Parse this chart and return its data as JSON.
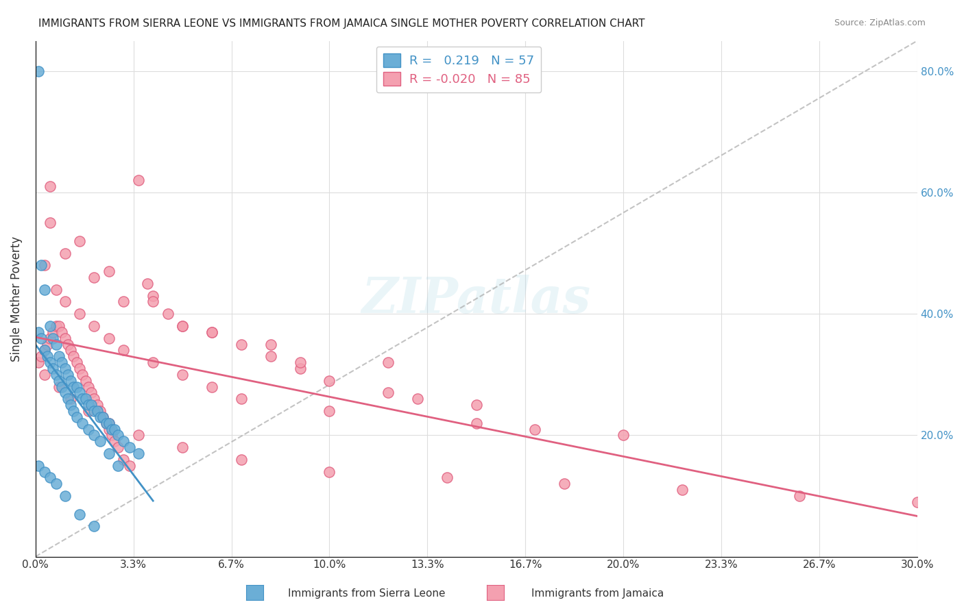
{
  "title": "IMMIGRANTS FROM SIERRA LEONE VS IMMIGRANTS FROM JAMAICA SINGLE MOTHER POVERTY CORRELATION CHART",
  "source": "Source: ZipAtlas.com",
  "xlabel_bottom": "",
  "ylabel": "Single Mother Poverty",
  "x_tick_labels": [
    "0.0%",
    "",
    "",
    "",
    "",
    "",
    "",
    "",
    "",
    "30.0%"
  ],
  "y_tick_labels_right": [
    "80.0%",
    "60.0%",
    "40.0%",
    "20.0%"
  ],
  "legend_r_blue": "R =   0.219   N = 57",
  "legend_r_pink": "R = -0.020   N = 85",
  "legend_label_blue": "Immigrants from Sierra Leone",
  "legend_label_pink": "Immigrants from Jamaica",
  "watermark": "ZIPatlas",
  "blue_color": "#6baed6",
  "pink_color": "#f4a0b0",
  "blue_line_color": "#4292c6",
  "pink_line_color": "#e06080",
  "dashed_line_color": "#aaaaaa",
  "background_color": "#ffffff",
  "grid_color": "#dddddd",
  "sierra_leone_x": [
    0.001,
    0.002,
    0.003,
    0.005,
    0.006,
    0.007,
    0.008,
    0.009,
    0.01,
    0.011,
    0.012,
    0.013,
    0.014,
    0.015,
    0.016,
    0.017,
    0.018,
    0.019,
    0.02,
    0.021,
    0.022,
    0.023,
    0.024,
    0.025,
    0.026,
    0.027,
    0.028,
    0.03,
    0.032,
    0.035,
    0.001,
    0.002,
    0.003,
    0.004,
    0.005,
    0.006,
    0.007,
    0.008,
    0.009,
    0.01,
    0.011,
    0.012,
    0.013,
    0.014,
    0.016,
    0.018,
    0.02,
    0.022,
    0.025,
    0.028,
    0.001,
    0.003,
    0.005,
    0.007,
    0.01,
    0.015,
    0.02
  ],
  "sierra_leone_y": [
    0.8,
    0.48,
    0.44,
    0.38,
    0.36,
    0.35,
    0.33,
    0.32,
    0.31,
    0.3,
    0.29,
    0.28,
    0.28,
    0.27,
    0.26,
    0.26,
    0.25,
    0.25,
    0.24,
    0.24,
    0.23,
    0.23,
    0.22,
    0.22,
    0.21,
    0.21,
    0.2,
    0.19,
    0.18,
    0.17,
    0.37,
    0.36,
    0.34,
    0.33,
    0.32,
    0.31,
    0.3,
    0.29,
    0.28,
    0.27,
    0.26,
    0.25,
    0.24,
    0.23,
    0.22,
    0.21,
    0.2,
    0.19,
    0.17,
    0.15,
    0.15,
    0.14,
    0.13,
    0.12,
    0.1,
    0.07,
    0.05
  ],
  "jamaica_x": [
    0.001,
    0.002,
    0.003,
    0.004,
    0.005,
    0.006,
    0.007,
    0.008,
    0.009,
    0.01,
    0.011,
    0.012,
    0.013,
    0.014,
    0.015,
    0.016,
    0.017,
    0.018,
    0.019,
    0.02,
    0.021,
    0.022,
    0.023,
    0.024,
    0.025,
    0.026,
    0.027,
    0.028,
    0.03,
    0.032,
    0.035,
    0.038,
    0.04,
    0.045,
    0.05,
    0.06,
    0.07,
    0.08,
    0.09,
    0.1,
    0.12,
    0.15,
    0.003,
    0.007,
    0.01,
    0.015,
    0.02,
    0.025,
    0.03,
    0.04,
    0.05,
    0.06,
    0.07,
    0.1,
    0.15,
    0.2,
    0.005,
    0.01,
    0.02,
    0.03,
    0.05,
    0.08,
    0.12,
    0.003,
    0.008,
    0.012,
    0.018,
    0.025,
    0.035,
    0.05,
    0.07,
    0.1,
    0.14,
    0.18,
    0.22,
    0.26,
    0.3,
    0.005,
    0.015,
    0.025,
    0.04,
    0.06,
    0.09,
    0.13,
    0.17
  ],
  "jamaica_y": [
    0.32,
    0.33,
    0.34,
    0.35,
    0.36,
    0.37,
    0.38,
    0.38,
    0.37,
    0.36,
    0.35,
    0.34,
    0.33,
    0.32,
    0.31,
    0.3,
    0.29,
    0.28,
    0.27,
    0.26,
    0.25,
    0.24,
    0.23,
    0.22,
    0.21,
    0.2,
    0.19,
    0.18,
    0.16,
    0.15,
    0.62,
    0.45,
    0.43,
    0.4,
    0.38,
    0.37,
    0.35,
    0.33,
    0.31,
    0.29,
    0.27,
    0.25,
    0.48,
    0.44,
    0.42,
    0.4,
    0.38,
    0.36,
    0.34,
    0.32,
    0.3,
    0.28,
    0.26,
    0.24,
    0.22,
    0.2,
    0.55,
    0.5,
    0.46,
    0.42,
    0.38,
    0.35,
    0.32,
    0.3,
    0.28,
    0.26,
    0.24,
    0.22,
    0.2,
    0.18,
    0.16,
    0.14,
    0.13,
    0.12,
    0.11,
    0.1,
    0.09,
    0.61,
    0.52,
    0.47,
    0.42,
    0.37,
    0.32,
    0.26,
    0.21
  ],
  "xlim": [
    0.0,
    0.3
  ],
  "ylim": [
    0.0,
    0.85
  ],
  "xright_label": "30.0%",
  "figsize": [
    14.06,
    8.92
  ],
  "dpi": 100
}
